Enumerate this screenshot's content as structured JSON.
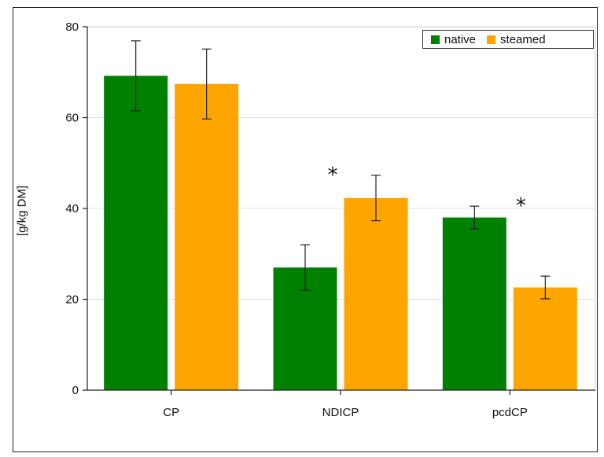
{
  "chart_data": {
    "type": "bar",
    "categories": [
      "CP",
      "NDICP",
      "pcdCP"
    ],
    "series": [
      {
        "name": "native",
        "color": "#008000",
        "values": [
          69.2,
          27.0,
          38.0
        ],
        "errors": [
          7.7,
          5.0,
          2.5
        ]
      },
      {
        "name": "steamed",
        "color": "#FFA500",
        "values": [
          67.4,
          42.3,
          22.6
        ],
        "errors": [
          7.7,
          5.0,
          2.5
        ]
      }
    ],
    "significance": [
      {
        "category": "NDICP",
        "label": "*"
      },
      {
        "category": "pcdCP",
        "label": "*"
      }
    ],
    "ylabel": "[g/kg DM]",
    "yticks": [
      0,
      20,
      40,
      60,
      80
    ],
    "ylim": [
      0,
      80
    ],
    "grid": true,
    "legend": "top-right"
  }
}
